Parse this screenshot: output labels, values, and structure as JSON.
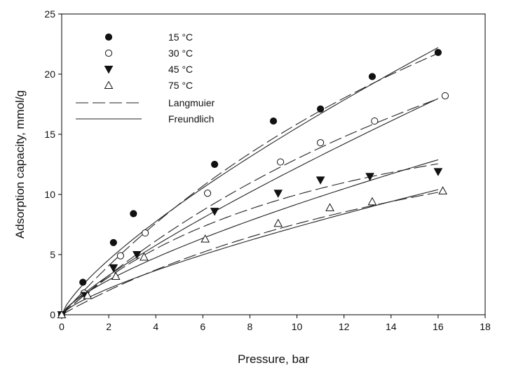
{
  "chart_data": {
    "type": "scatter",
    "xlabel": "Pressure, bar",
    "ylabel": "Adsorption capacity, mmol/g",
    "xlim": [
      0,
      18
    ],
    "ylim": [
      0,
      25
    ],
    "xticks": [
      "0",
      "2",
      "4",
      "6",
      "8",
      "10",
      "12",
      "14",
      "16",
      "18"
    ],
    "yticks": [
      "0",
      "5",
      "10",
      "15",
      "20",
      "25"
    ],
    "grid": false,
    "legend_position": "top-left",
    "series": [
      {
        "name": "15 °C",
        "marker": "circle-filled",
        "points": [
          [
            0,
            0
          ],
          [
            0.9,
            2.7
          ],
          [
            2.2,
            6.0
          ],
          [
            3.05,
            8.4
          ],
          [
            6.5,
            12.5
          ],
          [
            9.0,
            16.1
          ],
          [
            11.0,
            17.1
          ],
          [
            13.2,
            19.8
          ],
          [
            16.0,
            21.8
          ]
        ],
        "langmuir": {
          "qm": 57.0,
          "b": 0.0385
        },
        "freundlich": {
          "k": 2.7,
          "n": 0.76
        }
      },
      {
        "name": "30 °C",
        "marker": "circle-open",
        "points": [
          [
            0,
            0
          ],
          [
            0.95,
            1.8
          ],
          [
            2.5,
            4.9
          ],
          [
            3.55,
            6.8
          ],
          [
            6.2,
            10.1
          ],
          [
            9.3,
            12.7
          ],
          [
            11.0,
            14.3
          ],
          [
            13.3,
            16.1
          ],
          [
            16.3,
            18.2
          ]
        ],
        "langmuir": {
          "qm": 50.0,
          "b": 0.035
        },
        "freundlich": {
          "k": 1.85,
          "n": 0.82
        }
      },
      {
        "name": "45 °C",
        "marker": "triangle-down-filled",
        "points": [
          [
            0,
            0
          ],
          [
            1.0,
            1.6
          ],
          [
            2.2,
            3.9
          ],
          [
            3.2,
            5.0
          ],
          [
            6.5,
            8.6
          ],
          [
            9.2,
            10.1
          ],
          [
            11.0,
            11.2
          ],
          [
            13.1,
            11.5
          ],
          [
            16.0,
            11.9
          ]
        ],
        "langmuir": {
          "qm": 22.0,
          "b": 0.083
        },
        "freundlich": {
          "k": 1.75,
          "n": 0.72
        }
      },
      {
        "name": "75 °C",
        "marker": "triangle-up-open",
        "points": [
          [
            0,
            0
          ],
          [
            1.1,
            1.6
          ],
          [
            2.3,
            3.2
          ],
          [
            3.5,
            4.8
          ],
          [
            6.1,
            6.3
          ],
          [
            9.2,
            7.6
          ],
          [
            11.4,
            8.9
          ],
          [
            13.2,
            9.4
          ],
          [
            16.2,
            10.3
          ]
        ],
        "langmuir": {
          "qm": 24.0,
          "b": 0.046
        },
        "freundlich": {
          "k": 1.3,
          "n": 0.75
        }
      }
    ],
    "fit_lines": [
      {
        "name": "Langmuier",
        "style": "dashed"
      },
      {
        "name": "Freundlich",
        "style": "solid"
      }
    ],
    "x_fit_max": 16.0
  }
}
